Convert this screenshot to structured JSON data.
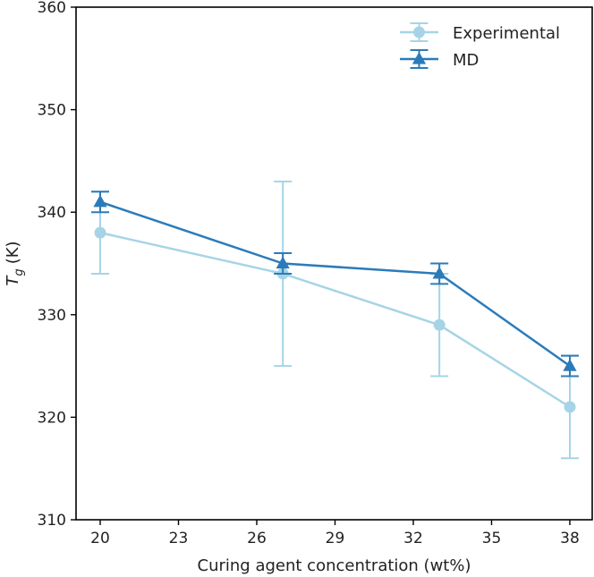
{
  "chart_data": {
    "type": "line",
    "title": "",
    "xlabel": "Curing agent concentration (wt%)",
    "ylabel_main": "T",
    "ylabel_sub": "g",
    "ylabel_unit": "(K)",
    "xlim": [
      20,
      38
    ],
    "ylim": [
      310,
      360
    ],
    "xticks": [
      20,
      23,
      26,
      29,
      32,
      35,
      38
    ],
    "yticks": [
      310,
      320,
      330,
      340,
      350,
      360
    ],
    "legend_position": "top-right",
    "series": [
      {
        "name": "Experimental",
        "color": "#a6d4e6",
        "marker": "circle",
        "x": [
          20,
          27,
          33,
          38
        ],
        "y": [
          338,
          334,
          329,
          321
        ],
        "err": [
          4,
          9,
          5,
          5
        ]
      },
      {
        "name": "MD",
        "color": "#2b7bba",
        "marker": "triangle",
        "x": [
          20,
          27,
          33,
          38
        ],
        "y": [
          341,
          335,
          334,
          325
        ],
        "err": [
          1,
          1,
          1,
          1
        ]
      }
    ]
  }
}
